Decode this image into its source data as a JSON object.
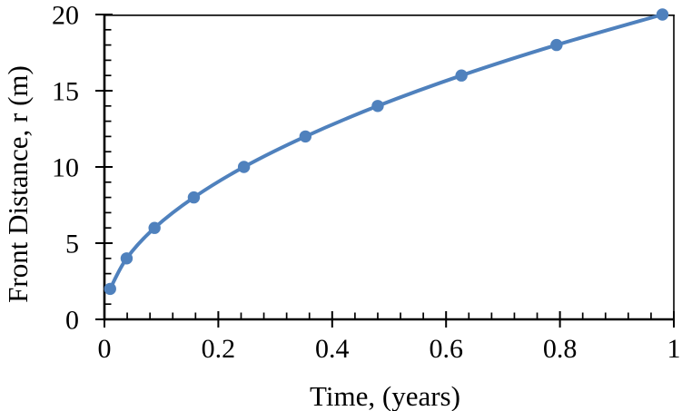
{
  "chart_data": {
    "type": "line",
    "title": "",
    "xlabel": "Time, (years)",
    "ylabel": "Front Distance, r (m)",
    "series": [
      {
        "x": [
          0.01,
          0.039,
          0.088,
          0.157,
          0.245,
          0.353,
          0.48,
          0.627,
          0.794,
          0.98
        ],
        "y": [
          2,
          4,
          6,
          8,
          10,
          12,
          14,
          16,
          18,
          20
        ],
        "color": "#4F81BD",
        "marker": "circle",
        "marker_radius": 6.7,
        "line_width": 4
      }
    ],
    "xlim": [
      0,
      1
    ],
    "ylim": [
      0,
      20
    ],
    "x_ticks": {
      "values": [
        0,
        0.2,
        0.4,
        0.6,
        0.8,
        1
      ],
      "labels": [
        "0",
        "0.2",
        "0.4",
        "0.6",
        "0.8",
        "1"
      ],
      "minor_step": 0.04
    },
    "y_ticks": {
      "values": [
        0,
        5,
        10,
        15,
        20
      ],
      "labels": [
        "0",
        "5",
        "10",
        "15",
        "20"
      ],
      "minor_step": 1
    },
    "grid": false,
    "legend": false,
    "axis_color": "#000000",
    "background": "#FFFFFF"
  }
}
